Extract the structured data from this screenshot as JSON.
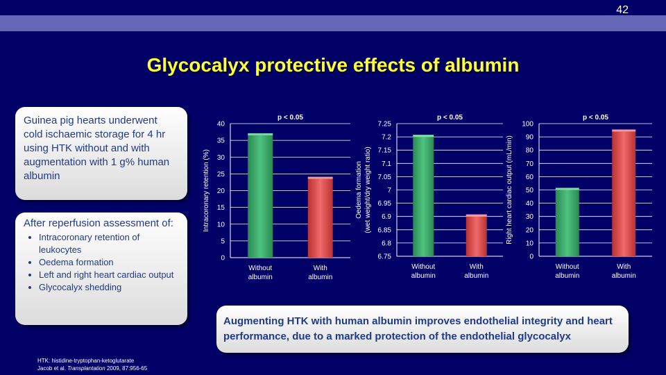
{
  "slide": {
    "number": "42",
    "title": "Glycocalyx protective effects of albumin"
  },
  "box_methods": {
    "text": "Guinea pig hearts underwent cold ischaemic storage for 4 hr using HTK without and with augmentation with 1 g% human albumin"
  },
  "box_assessment": {
    "heading": "After reperfusion assessment of:",
    "items": [
      "Intracoronary retention of leukocytes",
      "Oedema formation",
      "Left and right heart cardiac output",
      "Glycocalyx shedding"
    ]
  },
  "box_conclusion": {
    "text": "Augmenting HTK with human albumin improves endothelial integrity and heart performance, due to a marked protection of the endothelial glycocalyx"
  },
  "footnote": {
    "line1": "HTK: histidine-tryptophan-ketoglutarate",
    "line2_prefix": "Jacob et al. ",
    "journal": "Transplantation",
    "line2_suffix": " 2009, 87:956-65"
  },
  "colors": {
    "background": "#000066",
    "band": "#6666b8",
    "title": "#ffff33",
    "bar_without": "#3aa66a",
    "bar_with": "#e04f4f",
    "box_text": "#1f3a8a"
  },
  "chart_data": [
    {
      "type": "bar",
      "title": "p < 0.05",
      "categories": [
        "Without albumin",
        "With albumin"
      ],
      "category_lines": [
        [
          "Without",
          "albumin"
        ],
        [
          "With",
          "albumin"
        ]
      ],
      "values": [
        36.5,
        23.5
      ],
      "ylabel": [
        "Intracoronary retention (%)"
      ],
      "ylim": [
        0,
        40
      ],
      "yticks": [
        "0",
        "5",
        "10",
        "15",
        "20",
        "25",
        "30",
        "35",
        "40"
      ],
      "grid": true
    },
    {
      "type": "bar",
      "title": "p < 0.05",
      "categories": [
        "Without albumin",
        "With albumin"
      ],
      "category_lines": [
        [
          "Without",
          "albumin"
        ],
        [
          "With",
          "albumin"
        ]
      ],
      "values": [
        7.2,
        6.9
      ],
      "ylabel": [
        "Oedema formation",
        "(wet weight/dry weight ratio)"
      ],
      "ylim": [
        6.75,
        7.25
      ],
      "yticks": [
        "6.75",
        "6.8",
        "6.85",
        "6.9",
        "6.95",
        "7",
        "7.05",
        "7.1",
        "7.15",
        "7.2",
        "7.25"
      ],
      "grid": true
    },
    {
      "type": "bar",
      "title": "p < 0.05",
      "categories": [
        "Without albumin",
        "With albumin"
      ],
      "category_lines": [
        [
          "Without",
          "albumin"
        ],
        [
          "With",
          "albumin"
        ]
      ],
      "values": [
        50,
        94
      ],
      "ylabel": [
        "Right heart cardiac output (mL/min)"
      ],
      "ylim": [
        0,
        100
      ],
      "yticks": [
        "0",
        "10",
        "20",
        "30",
        "40",
        "50",
        "60",
        "70",
        "80",
        "90",
        "100"
      ],
      "grid": true
    }
  ]
}
